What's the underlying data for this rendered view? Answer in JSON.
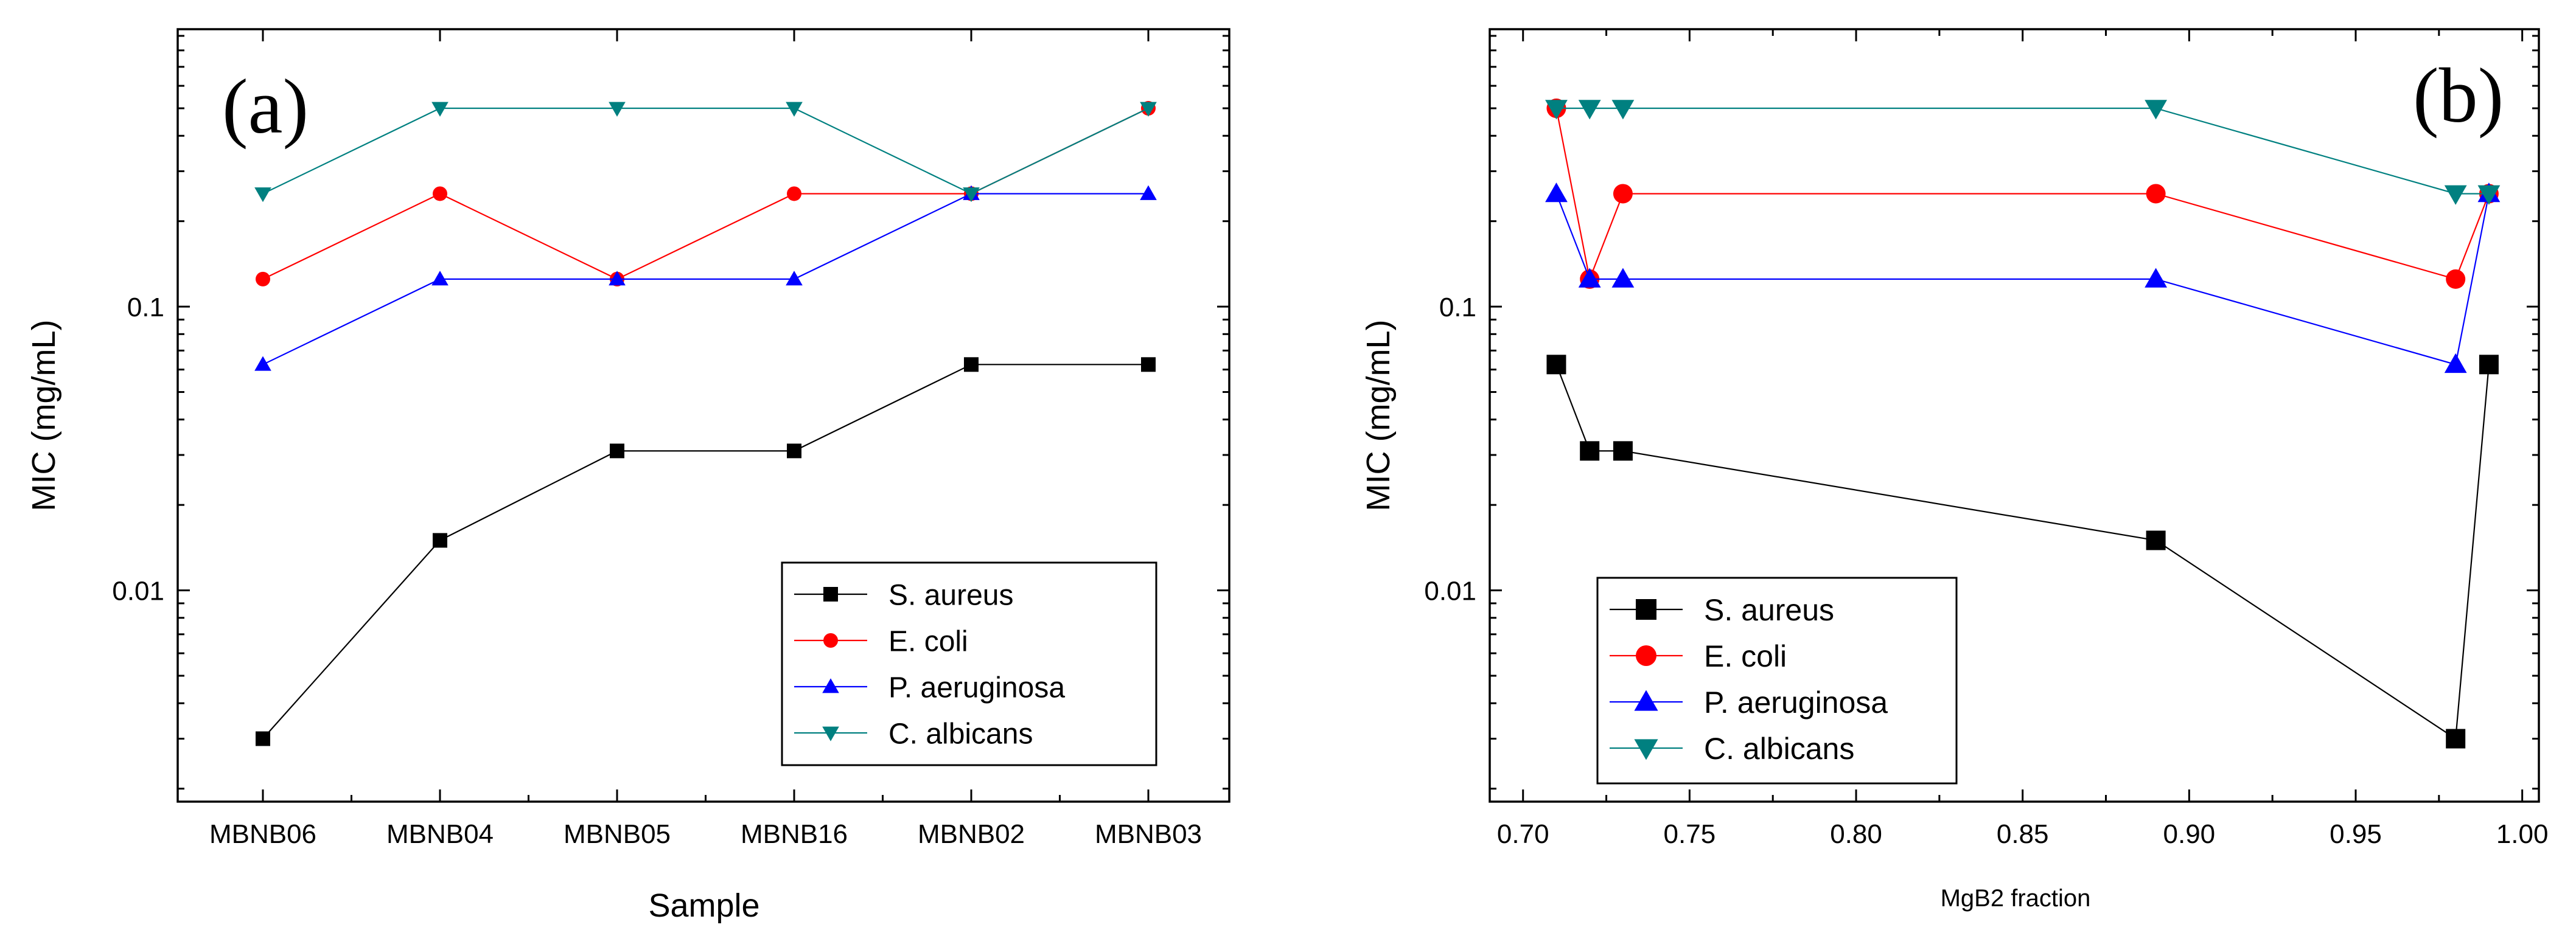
{
  "chart_data": [
    {
      "id": "a",
      "type": "line",
      "panel_label": "(a)",
      "title": "",
      "xlabel": "Sample",
      "ylabel": "MIC (mg/mL)",
      "yscale": "log",
      "ylim": [
        0.0018,
        0.95
      ],
      "categories": [
        "MBNB06",
        "MBNB04",
        "MBNB05",
        "MBNB16",
        "MBNB02",
        "MBNB03"
      ],
      "yticks": [
        {
          "value": 0.01,
          "label": "0.01"
        },
        {
          "value": 0.1,
          "label": "0.1"
        }
      ],
      "legend_position": "bottom-right",
      "series": [
        {
          "name": "S. aureus",
          "marker": "square",
          "color": "#000000",
          "values": [
            0.003,
            0.015,
            0.031,
            0.031,
            0.0625,
            0.0625
          ]
        },
        {
          "name": "E. coli",
          "marker": "circle",
          "color": "#ff0000",
          "values": [
            0.125,
            0.25,
            0.125,
            0.25,
            0.25,
            0.5
          ]
        },
        {
          "name": "P. aeruginosa",
          "marker": "triangle-up",
          "color": "#0000ff",
          "values": [
            0.0625,
            0.125,
            0.125,
            0.125,
            0.25,
            0.25
          ]
        },
        {
          "name": "C. albicans",
          "marker": "triangle-down",
          "color": "#008080",
          "values": [
            0.25,
            0.5,
            0.5,
            0.5,
            0.25,
            0.5
          ]
        }
      ]
    },
    {
      "id": "b",
      "type": "line",
      "panel_label": "(b)",
      "title": "",
      "xlabel": "MgB2 fraction",
      "ylabel": "MIC (mg/mL)",
      "yscale": "log",
      "xlim": [
        0.69,
        1.005
      ],
      "ylim": [
        0.0018,
        0.95
      ],
      "xticks": [
        {
          "value": 0.7,
          "label": "0.70"
        },
        {
          "value": 0.75,
          "label": "0.75"
        },
        {
          "value": 0.8,
          "label": "0.80"
        },
        {
          "value": 0.85,
          "label": "0.85"
        },
        {
          "value": 0.9,
          "label": "0.90"
        },
        {
          "value": 0.95,
          "label": "0.95"
        },
        {
          "value": 1.0,
          "label": "1.00"
        }
      ],
      "yticks": [
        {
          "value": 0.01,
          "label": "0.01"
        },
        {
          "value": 0.1,
          "label": "0.1"
        }
      ],
      "legend_position": "bottom-left",
      "series": [
        {
          "name": "S. aureus",
          "marker": "square",
          "color": "#000000",
          "x": [
            0.71,
            0.72,
            0.73,
            0.89,
            0.98,
            0.99
          ],
          "values": [
            0.0625,
            0.031,
            0.031,
            0.015,
            0.003,
            0.0625
          ]
        },
        {
          "name": "E. coli",
          "marker": "circle",
          "color": "#ff0000",
          "x": [
            0.71,
            0.72,
            0.73,
            0.89,
            0.98,
            0.99
          ],
          "values": [
            0.5,
            0.125,
            0.25,
            0.25,
            0.125,
            0.25
          ]
        },
        {
          "name": "P. aeruginosa",
          "marker": "triangle-up",
          "color": "#0000ff",
          "x": [
            0.71,
            0.72,
            0.73,
            0.89,
            0.98,
            0.99
          ],
          "values": [
            0.25,
            0.125,
            0.125,
            0.125,
            0.0625,
            0.25
          ]
        },
        {
          "name": "C. albicans",
          "marker": "triangle-down",
          "color": "#008080",
          "x": [
            0.71,
            0.72,
            0.73,
            0.89,
            0.98,
            0.99
          ],
          "values": [
            0.5,
            0.5,
            0.5,
            0.5,
            0.25,
            0.25
          ]
        }
      ]
    }
  ]
}
